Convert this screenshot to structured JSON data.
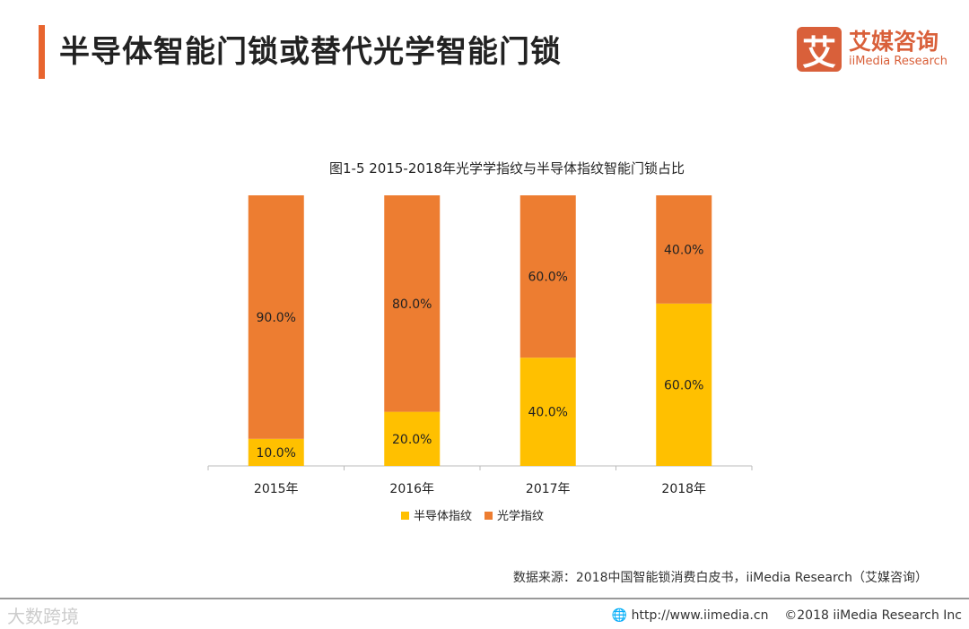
{
  "header": {
    "title": "半导体智能门锁或替代光学智能门锁"
  },
  "logo": {
    "mark": "艾",
    "cn": "艾媒咨询",
    "en": "iiMedia Research"
  },
  "chart_data": {
    "type": "bar",
    "stacked": true,
    "title": "图1-5 2015-2018年光学学指纹与半导体指纹智能门锁占比",
    "categories": [
      "2015年",
      "2016年",
      "2017年",
      "2018年"
    ],
    "series": [
      {
        "name": "半导体指纹",
        "color": "#ffc000",
        "values": [
          10,
          20,
          40,
          60
        ],
        "labels": [
          "10.0%",
          "20.0%",
          "40.0%",
          "60.0%"
        ]
      },
      {
        "name": "光学指纹",
        "color": "#ed7d31",
        "values": [
          90,
          80,
          60,
          40
        ],
        "labels": [
          "90.0%",
          "80.0%",
          "60.0%",
          "40.0%"
        ]
      }
    ],
    "ylim": [
      0,
      100
    ],
    "legend": "bottom"
  },
  "source": "数据来源：2018中国智能锁消费白皮书，iiMedia Research（艾媒咨询）",
  "footer": {
    "watermark": "大数跨境",
    "url": "http://www.iimedia.cn",
    "copyright": "©2018  iiMedia Research Inc"
  }
}
